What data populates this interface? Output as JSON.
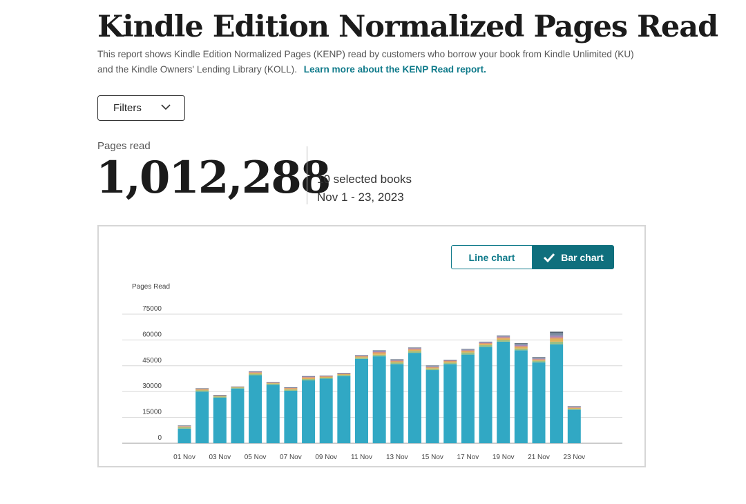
{
  "header": {
    "title": "Kindle Edition Normalized Pages Read",
    "description": "This report shows Kindle Edition Normalized Pages (KENP) read by customers who borrow your book from Kindle Unlimited (KU) and the Kindle Owners' Lending Library (KOLL).",
    "learn_more": "Learn more about the KENP Read report."
  },
  "filters": {
    "label": "Filters",
    "icon": "chevron-down-icon"
  },
  "summary": {
    "label": "Pages read",
    "total": "1,012,288",
    "books": "10 selected books",
    "range": "Nov 1 - 23, 2023"
  },
  "toggle": {
    "line_label": "Line chart",
    "bar_label": "Bar chart",
    "selected": "bar",
    "check_icon": "checkmark-icon"
  },
  "colors": {
    "accent": "#0f7a8a",
    "segments": [
      "#31a8c4",
      "#9bbf85",
      "#e0b25a",
      "#d98a6a",
      "#a889b8",
      "#7d8ea3",
      "#556372"
    ]
  },
  "chart_data": {
    "type": "bar",
    "stacked": true,
    "ylabel": "Pages Read",
    "ylim": [
      0,
      75000
    ],
    "yticks": [
      0,
      15000,
      30000,
      45000,
      60000,
      75000
    ],
    "grid": true,
    "categories": [
      "01 Nov",
      "02 Nov",
      "03 Nov",
      "04 Nov",
      "05 Nov",
      "06 Nov",
      "07 Nov",
      "08 Nov",
      "09 Nov",
      "10 Nov",
      "11 Nov",
      "12 Nov",
      "13 Nov",
      "14 Nov",
      "15 Nov",
      "16 Nov",
      "17 Nov",
      "18 Nov",
      "19 Nov",
      "20 Nov",
      "21 Nov",
      "22 Nov",
      "23 Nov"
    ],
    "xtick_labels": [
      "01 Nov",
      "",
      "03 Nov",
      "",
      "05 Nov",
      "",
      "07 Nov",
      "",
      "09 Nov",
      "",
      "11 Nov",
      "",
      "13 Nov",
      "",
      "15 Nov",
      "",
      "17 Nov",
      "",
      "19 Nov",
      "",
      "21 Nov",
      "",
      "23 Nov"
    ],
    "series": [
      {
        "values": [
          8500,
          30000,
          26500,
          31800,
          39500,
          34000,
          30500,
          36500,
          37500,
          39000,
          49000,
          50500,
          46000,
          52500,
          42500,
          46000,
          51500,
          56000,
          59000,
          54000,
          47000,
          57500,
          19500
        ]
      },
      {
        "values": [
          800,
          700,
          600,
          500,
          800,
          600,
          700,
          800,
          600,
          700,
          800,
          900,
          900,
          1000,
          900,
          800,
          1200,
          1000,
          1000,
          1000,
          900,
          1500,
          500
        ]
      },
      {
        "values": [
          400,
          500,
          300,
          300,
          600,
          300,
          600,
          700,
          500,
          400,
          500,
          900,
          600,
          800,
          500,
          700,
          800,
          800,
          900,
          900,
          500,
          1800,
          500
        ]
      },
      {
        "values": [
          200,
          300,
          200,
          200,
          300,
          200,
          300,
          400,
          300,
          200,
          300,
          600,
          400,
          500,
          300,
          400,
          400,
          400,
          600,
          500,
          400,
          700,
          300
        ]
      },
      {
        "values": [
          200,
          200,
          200,
          100,
          300,
          200,
          200,
          300,
          200,
          200,
          300,
          500,
          400,
          400,
          400,
          300,
          400,
          400,
          500,
          600,
          400,
          1000,
          300
        ]
      },
      {
        "values": [
          100,
          100,
          100,
          100,
          200,
          100,
          100,
          200,
          100,
          200,
          200,
          400,
          300,
          300,
          400,
          200,
          300,
          300,
          400,
          700,
          400,
          1500,
          300
        ]
      },
      {
        "values": [
          100,
          100,
          100,
          0,
          100,
          100,
          100,
          100,
          100,
          100,
          100,
          200,
          200,
          100,
          200,
          100,
          200,
          100,
          200,
          400,
          400,
          800,
          100
        ]
      }
    ]
  }
}
